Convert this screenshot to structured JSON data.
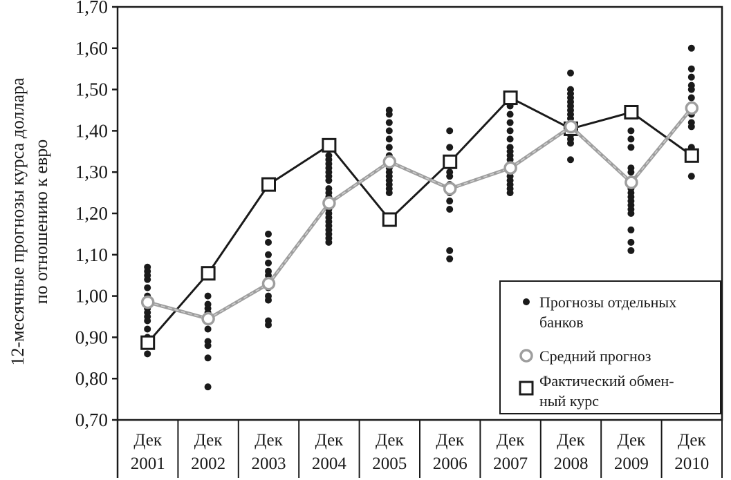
{
  "chart_data": {
    "type": "scatter",
    "ylabel_lines": [
      "12-месячные прогнозы курса доллара",
      "по отношению к евро"
    ],
    "xlabel": "",
    "ylim": [
      0.7,
      1.7
    ],
    "y_ticks": [
      "0,70",
      "0,80",
      "0,90",
      "1,00",
      "1,10",
      "1,20",
      "1,30",
      "1,40",
      "1,50",
      "1,60",
      "1,70"
    ],
    "y_tick_values": [
      0.7,
      0.8,
      0.9,
      1.0,
      1.1,
      1.2,
      1.3,
      1.4,
      1.5,
      1.6,
      1.7
    ],
    "categories": [
      [
        "Дек",
        "2001"
      ],
      [
        "Дек",
        "2002"
      ],
      [
        "Дек",
        "2003"
      ],
      [
        "Дек",
        "2004"
      ],
      [
        "Дек",
        "2005"
      ],
      [
        "Дек",
        "2006"
      ],
      [
        "Дек",
        "2007"
      ],
      [
        "Дек",
        "2008"
      ],
      [
        "Дек",
        "2009"
      ],
      [
        "Дек",
        "2010"
      ]
    ],
    "grid": false,
    "legend_position": "bottom-right",
    "legend": [
      {
        "lines": [
          "Прогнозы отдельных",
          "банков"
        ],
        "marker": "dot"
      },
      {
        "lines": [
          "Средний прогноз"
        ],
        "marker": "circle"
      },
      {
        "lines": [
          "Фактический обмен-",
          "ный курс"
        ],
        "marker": "square"
      }
    ],
    "series": [
      {
        "marker": "dot",
        "values": [
          [
            1.07,
            1.06,
            1.05,
            1.04,
            1.02,
            1.0,
            0.99,
            0.97,
            0.96,
            0.95,
            0.94,
            0.92,
            0.9,
            0.88,
            0.86
          ],
          [
            1.0,
            0.98,
            0.97,
            0.96,
            0.95,
            0.94,
            0.92,
            0.89,
            0.88,
            0.85,
            0.78
          ],
          [
            1.15,
            1.13,
            1.1,
            1.08,
            1.06,
            1.05,
            1.04,
            1.03,
            1.02,
            1.0,
            0.99,
            0.94,
            0.93
          ],
          [
            1.34,
            1.33,
            1.32,
            1.31,
            1.3,
            1.29,
            1.28,
            1.26,
            1.25,
            1.24,
            1.23,
            1.22,
            1.21,
            1.2,
            1.19,
            1.18,
            1.17,
            1.16,
            1.15,
            1.14,
            1.13
          ],
          [
            1.45,
            1.44,
            1.42,
            1.4,
            1.38,
            1.36,
            1.34,
            1.32,
            1.31,
            1.3,
            1.29,
            1.28,
            1.27,
            1.26,
            1.25
          ],
          [
            1.4,
            1.36,
            1.33,
            1.3,
            1.29,
            1.27,
            1.25,
            1.23,
            1.21,
            1.11,
            1.09
          ],
          [
            1.48,
            1.46,
            1.44,
            1.42,
            1.4,
            1.38,
            1.36,
            1.35,
            1.34,
            1.33,
            1.31,
            1.3,
            1.29,
            1.28,
            1.27,
            1.26,
            1.25
          ],
          [
            1.54,
            1.5,
            1.49,
            1.48,
            1.47,
            1.46,
            1.45,
            1.44,
            1.43,
            1.42,
            1.41,
            1.4,
            1.39,
            1.38,
            1.37,
            1.33
          ],
          [
            1.4,
            1.38,
            1.36,
            1.31,
            1.3,
            1.28,
            1.27,
            1.26,
            1.25,
            1.24,
            1.23,
            1.22,
            1.21,
            1.2,
            1.16,
            1.13,
            1.11
          ],
          [
            1.6,
            1.55,
            1.53,
            1.51,
            1.5,
            1.48,
            1.46,
            1.44,
            1.42,
            1.41,
            1.36,
            1.34,
            1.29
          ]
        ]
      },
      {
        "marker": "circle",
        "values": [
          0.985,
          0.945,
          1.03,
          1.225,
          1.325,
          1.26,
          1.31,
          1.41,
          1.275,
          1.455
        ]
      },
      {
        "marker": "square",
        "values": [
          0.887,
          1.055,
          1.27,
          1.365,
          1.185,
          1.325,
          1.48,
          1.405,
          1.445,
          1.34
        ]
      }
    ]
  },
  "style": {
    "ink": "#1a1a1a",
    "mean_line": "#9e9e9e",
    "mean_line_dash": "#d0d0d0",
    "background": "#ffffff"
  }
}
